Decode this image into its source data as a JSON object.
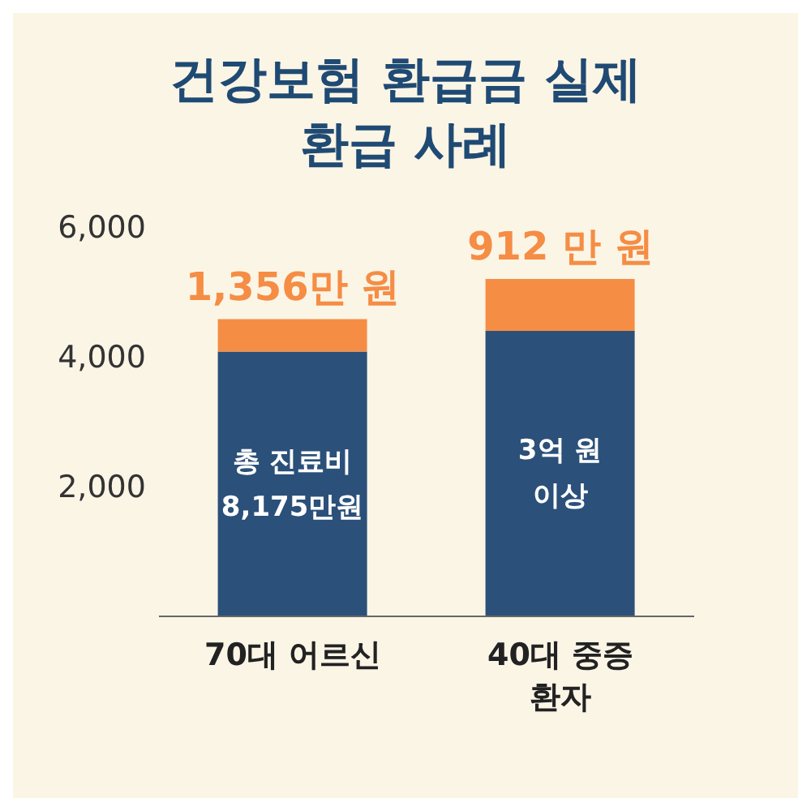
{
  "chart_data": {
    "type": "bar",
    "title": "건강보험 환급금 실제 환급 사례",
    "categories": [
      "70대 어르신",
      "40대 중증 환자"
    ],
    "stacked": true,
    "series": [
      {
        "color": "#2b5079",
        "values": [
          4080,
          4400
        ]
      },
      {
        "color": "#f58d45",
        "values": [
          500,
          800
        ]
      }
    ],
    "annotations": [
      {
        "text": "1,356만 원",
        "x": "70대 어르신",
        "y": 4580
      },
      {
        "text": "912 만 원",
        "x": "40대 중증 환자",
        "y": 5200
      },
      "총 진료비\n8,175만원",
      "3억 원\n이상"
    ],
    "ylim": [
      0,
      6000
    ],
    "yticks": [
      {
        "value": 2000,
        "label": "2,000"
      },
      {
        "value": 4000,
        "label": "4,000"
      },
      {
        "value": 6000,
        "label": "6,000"
      }
    ],
    "grid": false,
    "legend": false
  }
}
